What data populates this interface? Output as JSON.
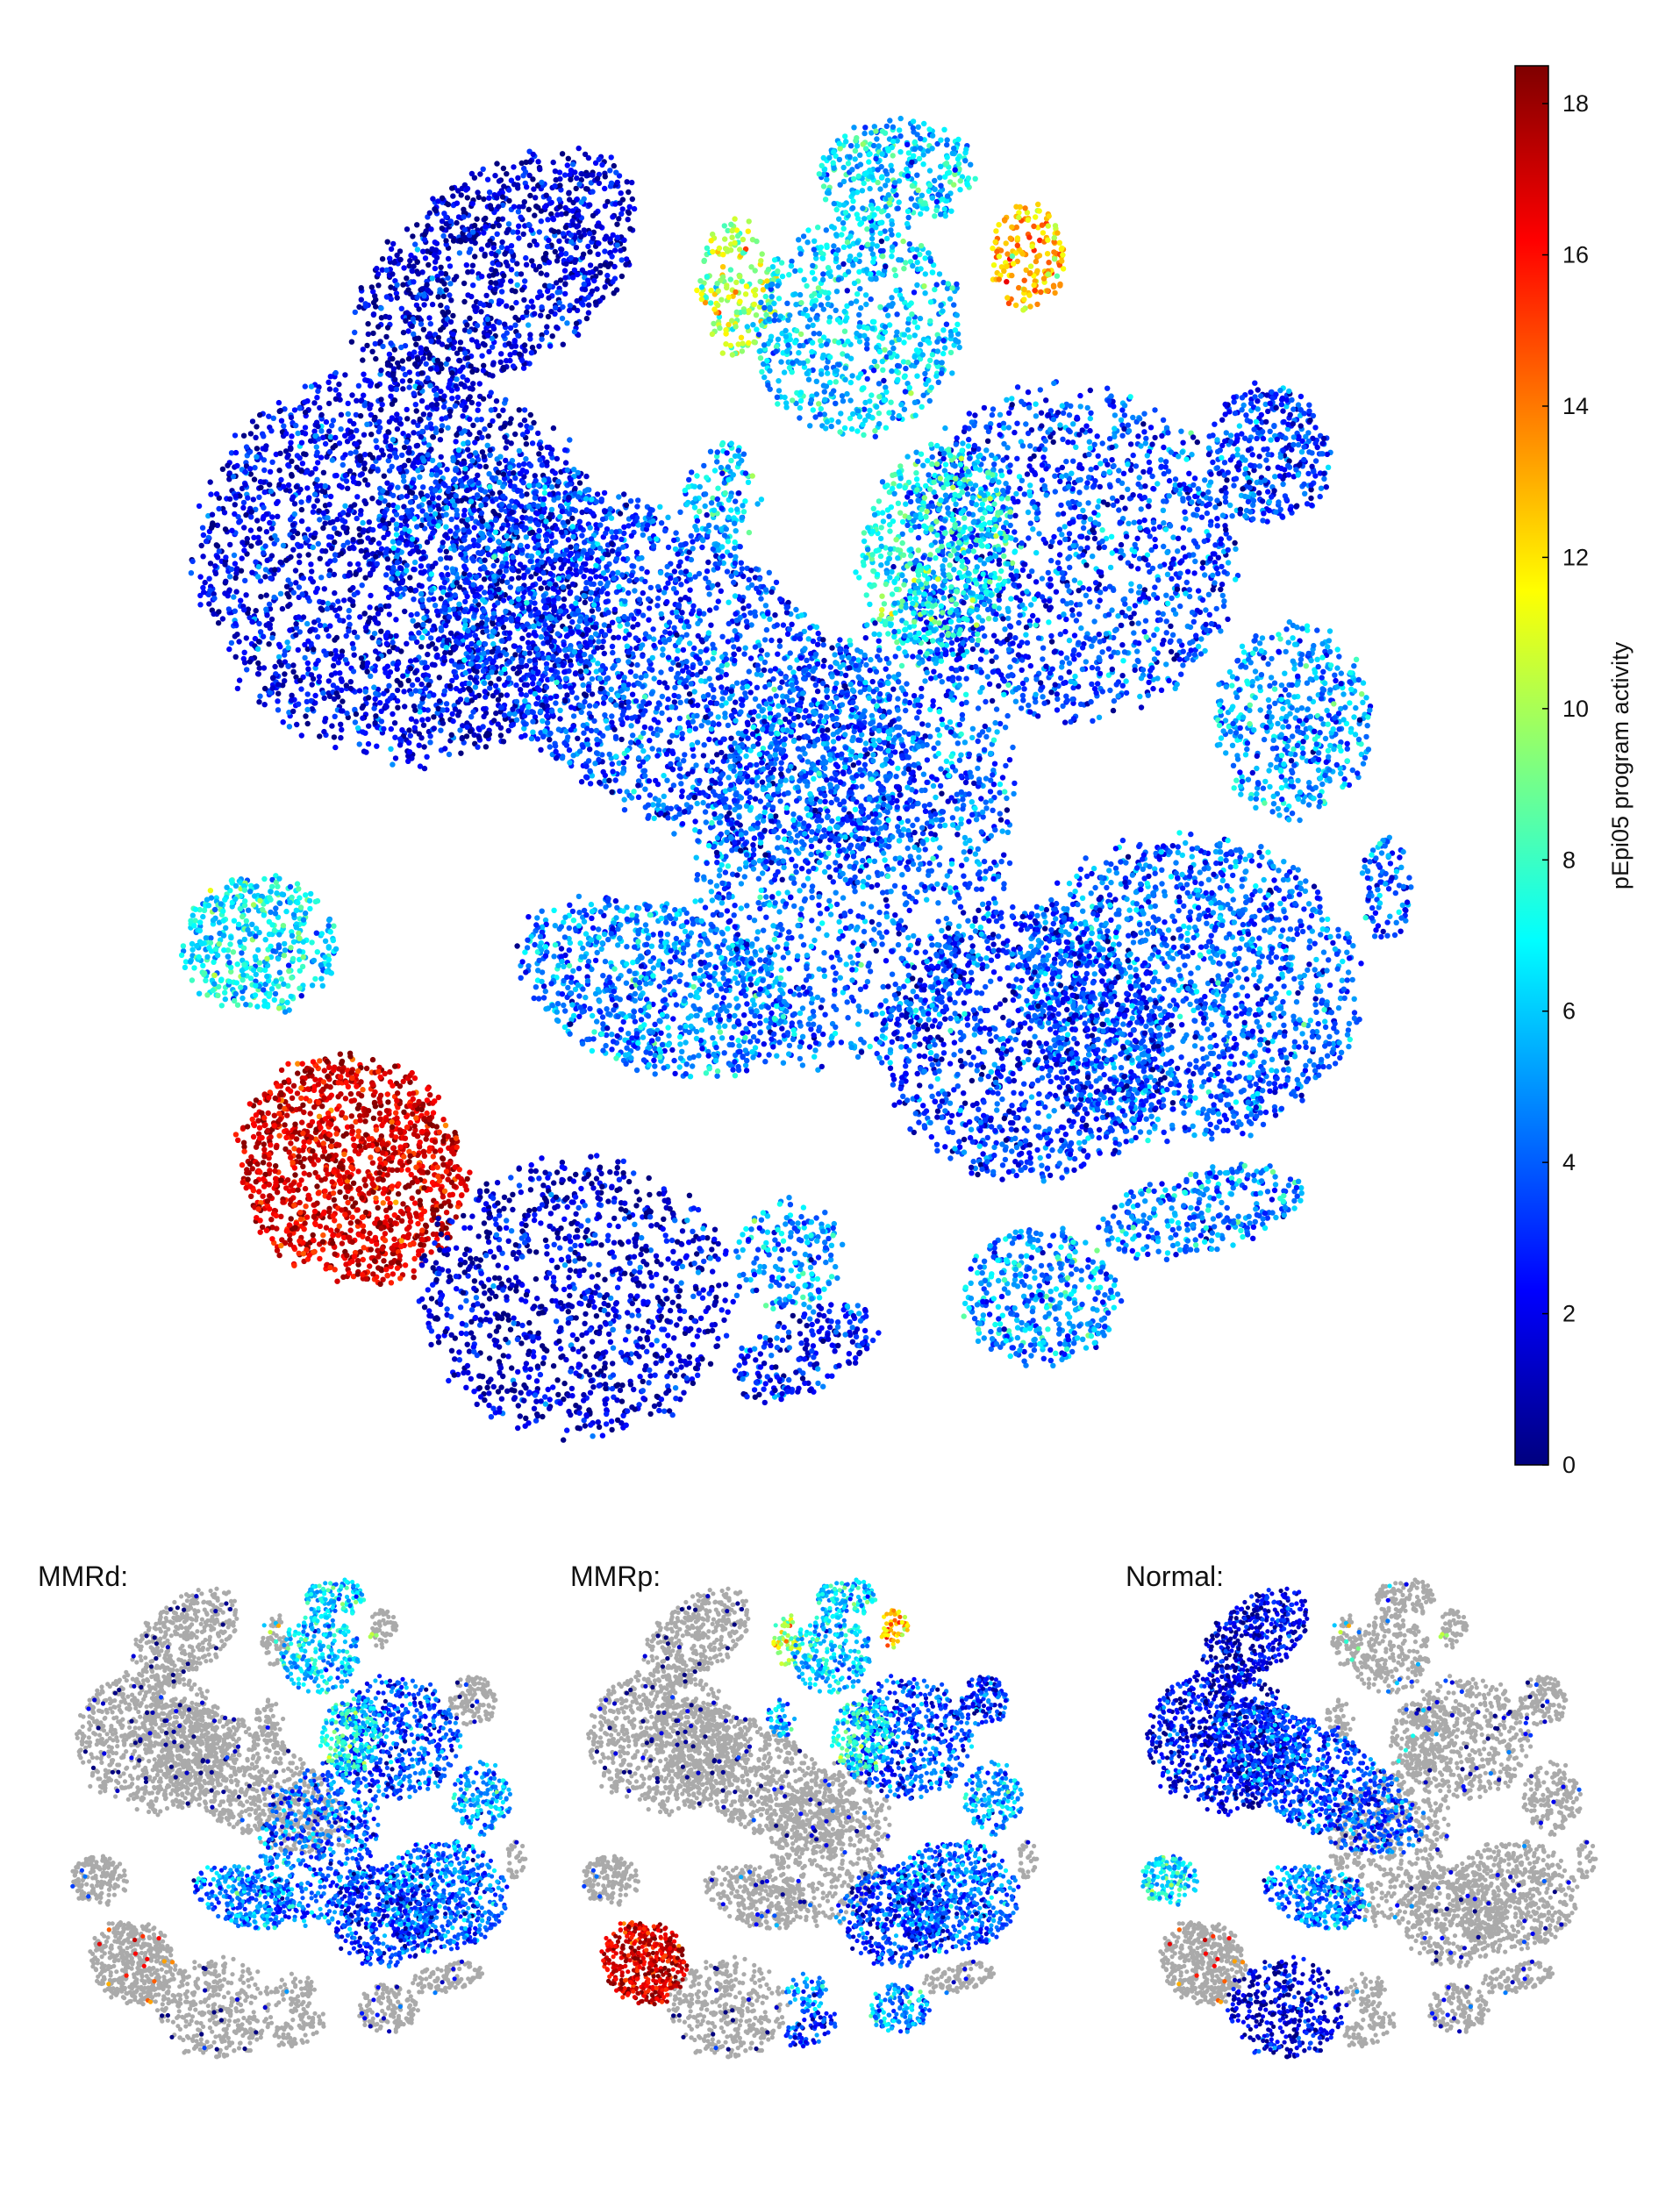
{
  "chart_data": [
    {
      "type": "scatter",
      "panel": "main",
      "title": "",
      "xlabel": "",
      "ylabel": "",
      "colorbar": {
        "label": "pEpi05 program activity",
        "min": 0,
        "max": 18.5,
        "ticks": [
          0,
          2,
          4,
          6,
          8,
          10,
          12,
          14,
          16,
          18
        ],
        "colormap": "jet",
        "colors": [
          "#00007f",
          "#0000ff",
          "#007fff",
          "#00ffff",
          "#7fff7f",
          "#ffff00",
          "#ff7f00",
          "#ff0000",
          "#7f0000"
        ]
      },
      "clusters": [
        {
          "id": "c1",
          "mean": 2.0
        },
        {
          "id": "c2",
          "mean": 1.5
        },
        {
          "id": "c3",
          "mean": 3.5
        },
        {
          "id": "c4",
          "mean": 4.0
        },
        {
          "id": "c5",
          "mean": 4.5
        },
        {
          "id": "c6",
          "mean": 17.0
        },
        {
          "id": "c7",
          "mean": 1.5
        },
        {
          "id": "c8",
          "mean": 6.5
        },
        {
          "id": "c9",
          "mean": 6.0
        },
        {
          "id": "c10",
          "mean": 10.0
        },
        {
          "id": "c11",
          "mean": 13.0
        },
        {
          "id": "c12",
          "mean": 6.0
        },
        {
          "id": "c13",
          "mean": 3.5
        },
        {
          "id": "c14",
          "mean": 7.0
        },
        {
          "id": "c15",
          "mean": 4.0
        },
        {
          "id": "c16",
          "mean": 3.0
        },
        {
          "id": "c17",
          "mean": 3.0
        },
        {
          "id": "c18",
          "mean": 5.0
        },
        {
          "id": "c19",
          "mean": 5.0
        },
        {
          "id": "c20",
          "mean": 4.5
        },
        {
          "id": "c21",
          "mean": 2.5
        },
        {
          "id": "c22",
          "mean": 5.0
        },
        {
          "id": "c23",
          "mean": 4.0
        },
        {
          "id": "c24",
          "mean": 5.5
        }
      ]
    },
    {
      "type": "scatter",
      "panel": "MMRd",
      "title": "MMRd:",
      "highlight_mean": 6.0
    },
    {
      "type": "scatter",
      "panel": "MMRp",
      "title": "MMRp:",
      "highlight_mean": 5.5
    },
    {
      "type": "scatter",
      "panel": "Normal",
      "title": "Normal:",
      "highlight_mean": 5.0
    }
  ],
  "background_color": "#aaaaaa"
}
